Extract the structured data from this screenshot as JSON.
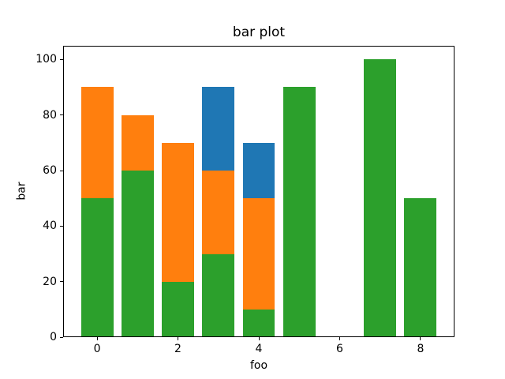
{
  "chart_data": {
    "type": "bar",
    "stacked": true,
    "title": "bar plot",
    "xlabel": "foo",
    "ylabel": "bar",
    "x": [
      0,
      1,
      2,
      3,
      4,
      5,
      6,
      7,
      8
    ],
    "categories": [
      "0",
      "1",
      "2",
      "3",
      "4",
      "5",
      "6",
      "7",
      "8"
    ],
    "series": [
      {
        "name": "green",
        "color": "#2ca02c",
        "values": [
          50,
          60,
          20,
          30,
          10,
          90,
          0,
          100,
          50
        ]
      },
      {
        "name": "orange",
        "color": "#ff7f0e",
        "values": [
          40,
          20,
          50,
          30,
          40,
          0,
          0,
          0,
          0
        ]
      },
      {
        "name": "blue",
        "color": "#1f77b4",
        "values": [
          0,
          0,
          0,
          30,
          20,
          0,
          0,
          0,
          0
        ]
      }
    ],
    "stack_totals": [
      90,
      80,
      70,
      90,
      70,
      90,
      0,
      100,
      50
    ],
    "xticks": [
      0,
      2,
      4,
      6,
      8
    ],
    "xtick_labels": [
      "0",
      "2",
      "4",
      "6",
      "8"
    ],
    "yticks": [
      0,
      20,
      40,
      60,
      80,
      100
    ],
    "ytick_labels": [
      "0",
      "20",
      "40",
      "60",
      "80",
      "100"
    ],
    "xlim": [
      -0.84,
      8.84
    ],
    "ylim": [
      0,
      105
    ],
    "bar_width": 0.8,
    "grid": false,
    "legend": null,
    "background_color": "#ffffff",
    "spine_color": "#000000",
    "text_color": "#000000"
  }
}
